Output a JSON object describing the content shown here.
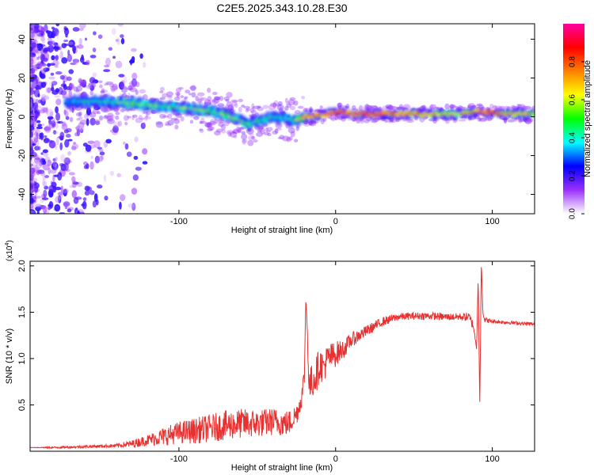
{
  "title": "C2E5.2025.343.10.28.E30",
  "chart_data": [
    {
      "type": "heatmap",
      "xlabel": "Height of straight line (km)",
      "ylabel": "Frequency (Hz)",
      "xlim": [
        -195,
        127
      ],
      "ylim": [
        -50,
        48
      ],
      "x_ticks": [
        -100,
        0,
        100
      ],
      "x_tick_labels": [
        "-100",
        "0",
        "100"
      ],
      "y_ticks": [
        -40,
        -20,
        0,
        20,
        40
      ],
      "y_tick_labels": [
        "-40",
        "-20",
        "0",
        "20",
        "40"
      ],
      "colorbar": {
        "label": "Normalized spectral amplitude",
        "range": [
          0,
          1
        ],
        "ticks": [
          0.0,
          0.2,
          0.4,
          0.6,
          0.8
        ],
        "tick_labels": [
          "0.0",
          "0.2",
          "0.4",
          "0.6",
          "0.8"
        ],
        "colors": [
          "#ffffff",
          "#9b30ff",
          "#0000ff",
          "#00ffff",
          "#00ff00",
          "#ffff00",
          "#ff8000",
          "#ff0000",
          "#ff00a0"
        ]
      },
      "ridge": {
        "x": [
          -170,
          -160,
          -150,
          -140,
          -130,
          -120,
          -110,
          -100,
          -90,
          -80,
          -70,
          -60,
          -55,
          -50,
          -40,
          -30,
          -25,
          -20,
          -10,
          0,
          5,
          10,
          20,
          40,
          60,
          80,
          90,
          100,
          110,
          127
        ],
        "freq": [
          8,
          8,
          8,
          7.5,
          7,
          6,
          5.5,
          5,
          4,
          3,
          1,
          -2,
          -4,
          -2,
          0,
          -1,
          -2,
          0,
          1,
          2,
          2.5,
          1.5,
          1.5,
          1.5,
          1.5,
          1.5,
          2.5,
          2,
          1.5,
          1.5
        ],
        "amplitude": [
          0.25,
          0.35,
          0.35,
          0.4,
          0.45,
          0.45,
          0.4,
          0.4,
          0.45,
          0.45,
          0.45,
          0.45,
          0.4,
          0.4,
          0.35,
          0.35,
          0.45,
          0.65,
          0.7,
          0.8,
          0.75,
          0.7,
          0.75,
          0.7,
          0.6,
          0.55,
          0.7,
          0.75,
          0.6,
          0.55
        ]
      }
    },
    {
      "type": "line",
      "xlabel": "Height of straight line (km)",
      "ylabel": "SNR (10 * v/v)",
      "y_multiplier_label": "(x10",
      "y_multiplier_exp": "4",
      "y_multiplier_close": ")",
      "xlim": [
        -195,
        127
      ],
      "ylim": [
        0,
        2.05
      ],
      "x_ticks": [
        -100,
        0,
        100
      ],
      "x_tick_labels": [
        "-100",
        "0",
        "100"
      ],
      "y_ticks": [
        0.5,
        1.0,
        1.5,
        2.0
      ],
      "y_tick_labels": [
        "0.5",
        "1.0",
        "1.5",
        "2.0"
      ],
      "series": [
        {
          "name": "SNR",
          "color": "#e83030",
          "x": [
            -195,
            -180,
            -160,
            -140,
            -130,
            -120,
            -110,
            -100,
            -90,
            -80,
            -70,
            -60,
            -50,
            -40,
            -30,
            -25,
            -22,
            -20,
            -19,
            -18,
            -17,
            -15,
            -12,
            -10,
            -8,
            -5,
            0,
            5,
            10,
            15,
            20,
            30,
            40,
            50,
            60,
            70,
            80,
            85,
            88,
            90,
            91,
            92,
            93,
            94,
            95,
            100,
            110,
            127
          ],
          "y": [
            0.04,
            0.04,
            0.05,
            0.06,
            0.08,
            0.12,
            0.16,
            0.2,
            0.22,
            0.25,
            0.28,
            0.3,
            0.3,
            0.32,
            0.3,
            0.4,
            0.55,
            0.8,
            1.65,
            1.3,
            0.7,
            0.75,
            0.85,
            0.95,
            0.9,
            1.0,
            1.05,
            1.1,
            1.2,
            1.25,
            1.3,
            1.4,
            1.45,
            1.46,
            1.46,
            1.45,
            1.45,
            1.45,
            1.35,
            1.1,
            1.9,
            0.47,
            2.05,
            1.5,
            1.42,
            1.4,
            1.39,
            1.37
          ],
          "jitter": [
            0.0,
            0.01,
            0.015,
            0.02,
            0.04,
            0.06,
            0.1,
            0.12,
            0.14,
            0.15,
            0.16,
            0.16,
            0.15,
            0.15,
            0.14,
            0.12,
            0.1,
            0.12,
            0.0,
            0.1,
            0.18,
            0.2,
            0.2,
            0.18,
            0.18,
            0.16,
            0.14,
            0.1,
            0.08,
            0.07,
            0.06,
            0.05,
            0.04,
            0.04,
            0.04,
            0.04,
            0.04,
            0.05,
            0.05,
            0.0,
            0.0,
            0.0,
            0.0,
            0.03,
            0.03,
            0.02,
            0.02,
            0.02
          ]
        }
      ]
    }
  ]
}
